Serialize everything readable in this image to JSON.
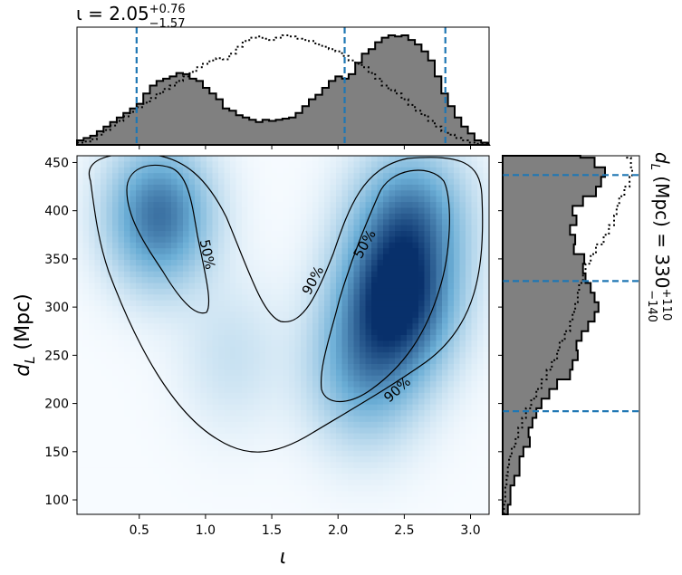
{
  "chart_data": [
    {
      "type": "heatmap",
      "panel": "joint-density",
      "xlabel": "ι",
      "ylabel": "d_L (Mpc)",
      "xlim": [
        0.03,
        3.14
      ],
      "ylim": [
        85,
        457
      ],
      "xticks": [
        0.5,
        1.0,
        1.5,
        2.0,
        2.5,
        3.0
      ],
      "xtick_labels": [
        "0.5",
        "1.0",
        "1.5",
        "2.0",
        "2.5",
        "3.0"
      ],
      "yticks": [
        100,
        150,
        200,
        250,
        300,
        350,
        400,
        450
      ],
      "ytick_labels": [
        "100",
        "150",
        "200",
        "250",
        "300",
        "350",
        "400",
        "450"
      ],
      "colormap": "Blues",
      "density_peaks": [
        {
          "x": 0.65,
          "y": 395,
          "weight": 0.7
        },
        {
          "x": 2.45,
          "y": 310,
          "weight": 1.0
        },
        {
          "x": 2.55,
          "y": 395,
          "weight": 0.55
        },
        {
          "x": 2.2,
          "y": 235,
          "weight": 0.45
        },
        {
          "x": 1.2,
          "y": 250,
          "weight": 0.12
        }
      ],
      "contours": [
        {
          "label": "50%",
          "level": 0.5
        },
        {
          "label": "50%",
          "level": 0.5
        },
        {
          "label": "90%",
          "level": 0.9
        },
        {
          "label": "90%",
          "level": 0.9
        }
      ]
    },
    {
      "type": "bar",
      "panel": "iota-marginal",
      "title_text": "ι = 2.05",
      "title_sup": "+0.76",
      "title_sub": "−1.57",
      "quantiles": [
        0.48,
        2.05,
        2.81
      ],
      "x": [
        0.03,
        0.08,
        0.13,
        0.18,
        0.23,
        0.28,
        0.33,
        0.38,
        0.43,
        0.48,
        0.53,
        0.58,
        0.63,
        0.68,
        0.73,
        0.78,
        0.83,
        0.88,
        0.93,
        0.98,
        1.03,
        1.08,
        1.13,
        1.18,
        1.23,
        1.28,
        1.33,
        1.38,
        1.43,
        1.48,
        1.53,
        1.58,
        1.63,
        1.68,
        1.73,
        1.78,
        1.83,
        1.88,
        1.93,
        1.98,
        2.03,
        2.08,
        2.13,
        2.18,
        2.23,
        2.28,
        2.33,
        2.38,
        2.43,
        2.48,
        2.53,
        2.58,
        2.63,
        2.68,
        2.73,
        2.78,
        2.83,
        2.88,
        2.93,
        2.98,
        3.03,
        3.08
      ],
      "values": [
        0.04,
        0.06,
        0.08,
        0.12,
        0.16,
        0.2,
        0.24,
        0.28,
        0.32,
        0.36,
        0.45,
        0.52,
        0.56,
        0.58,
        0.6,
        0.63,
        0.62,
        0.58,
        0.56,
        0.5,
        0.45,
        0.4,
        0.32,
        0.3,
        0.26,
        0.24,
        0.22,
        0.2,
        0.22,
        0.21,
        0.22,
        0.23,
        0.24,
        0.28,
        0.34,
        0.4,
        0.44,
        0.5,
        0.56,
        0.6,
        0.58,
        0.62,
        0.72,
        0.8,
        0.84,
        0.9,
        0.94,
        0.96,
        0.95,
        0.96,
        0.92,
        0.88,
        0.82,
        0.74,
        0.6,
        0.45,
        0.34,
        0.24,
        0.16,
        0.1,
        0.04,
        0.02
      ],
      "values_dotted": [
        0.02,
        0.03,
        0.05,
        0.09,
        0.13,
        0.17,
        0.21,
        0.25,
        0.29,
        0.33,
        0.37,
        0.41,
        0.45,
        0.49,
        0.52,
        0.56,
        0.6,
        0.64,
        0.68,
        0.71,
        0.74,
        0.76,
        0.75,
        0.8,
        0.86,
        0.91,
        0.94,
        0.95,
        0.93,
        0.92,
        0.94,
        0.96,
        0.95,
        0.93,
        0.92,
        0.91,
        0.88,
        0.86,
        0.84,
        0.82,
        0.78,
        0.74,
        0.71,
        0.68,
        0.63,
        0.58,
        0.52,
        0.48,
        0.45,
        0.4,
        0.35,
        0.3,
        0.26,
        0.21,
        0.16,
        0.12,
        0.09,
        0.06,
        0.04,
        0.02,
        0.01,
        0.01
      ],
      "ymax": 1.0
    },
    {
      "type": "bar",
      "panel": "dL-marginal",
      "side_text": "d",
      "side_sub_L": "L",
      "side_rest": " (Mpc) = 330",
      "side_sup": "+110",
      "side_sub": "−140",
      "quantiles": [
        192,
        327,
        437
      ],
      "y": [
        85,
        95,
        105,
        115,
        125,
        135,
        145,
        155,
        165,
        175,
        185,
        195,
        205,
        215,
        225,
        235,
        245,
        255,
        265,
        275,
        285,
        295,
        305,
        315,
        325,
        335,
        345,
        355,
        365,
        375,
        385,
        395,
        405,
        415,
        425,
        435,
        445,
        455
      ],
      "values": [
        0.04,
        0.06,
        0.06,
        0.09,
        0.13,
        0.13,
        0.16,
        0.21,
        0.2,
        0.23,
        0.26,
        0.3,
        0.36,
        0.42,
        0.52,
        0.54,
        0.58,
        0.57,
        0.61,
        0.66,
        0.71,
        0.74,
        0.71,
        0.68,
        0.64,
        0.62,
        0.63,
        0.55,
        0.56,
        0.52,
        0.57,
        0.54,
        0.62,
        0.72,
        0.76,
        0.79,
        0.71,
        0.6
      ],
      "values_dotted": [
        0.01,
        0.02,
        0.02,
        0.03,
        0.04,
        0.05,
        0.07,
        0.1,
        0.12,
        0.15,
        0.18,
        0.22,
        0.26,
        0.3,
        0.34,
        0.38,
        0.42,
        0.44,
        0.48,
        0.52,
        0.54,
        0.56,
        0.58,
        0.59,
        0.62,
        0.64,
        0.68,
        0.72,
        0.78,
        0.82,
        0.86,
        0.88,
        0.9,
        0.94,
        0.98,
        1.0,
        0.99,
        0.96
      ],
      "xmax": 1.0
    }
  ],
  "style": {
    "hist_fill": "#808080",
    "quantile_color": "#1f77b4",
    "cmap_low": "#f7fbff",
    "cmap_high": "#08306b"
  }
}
